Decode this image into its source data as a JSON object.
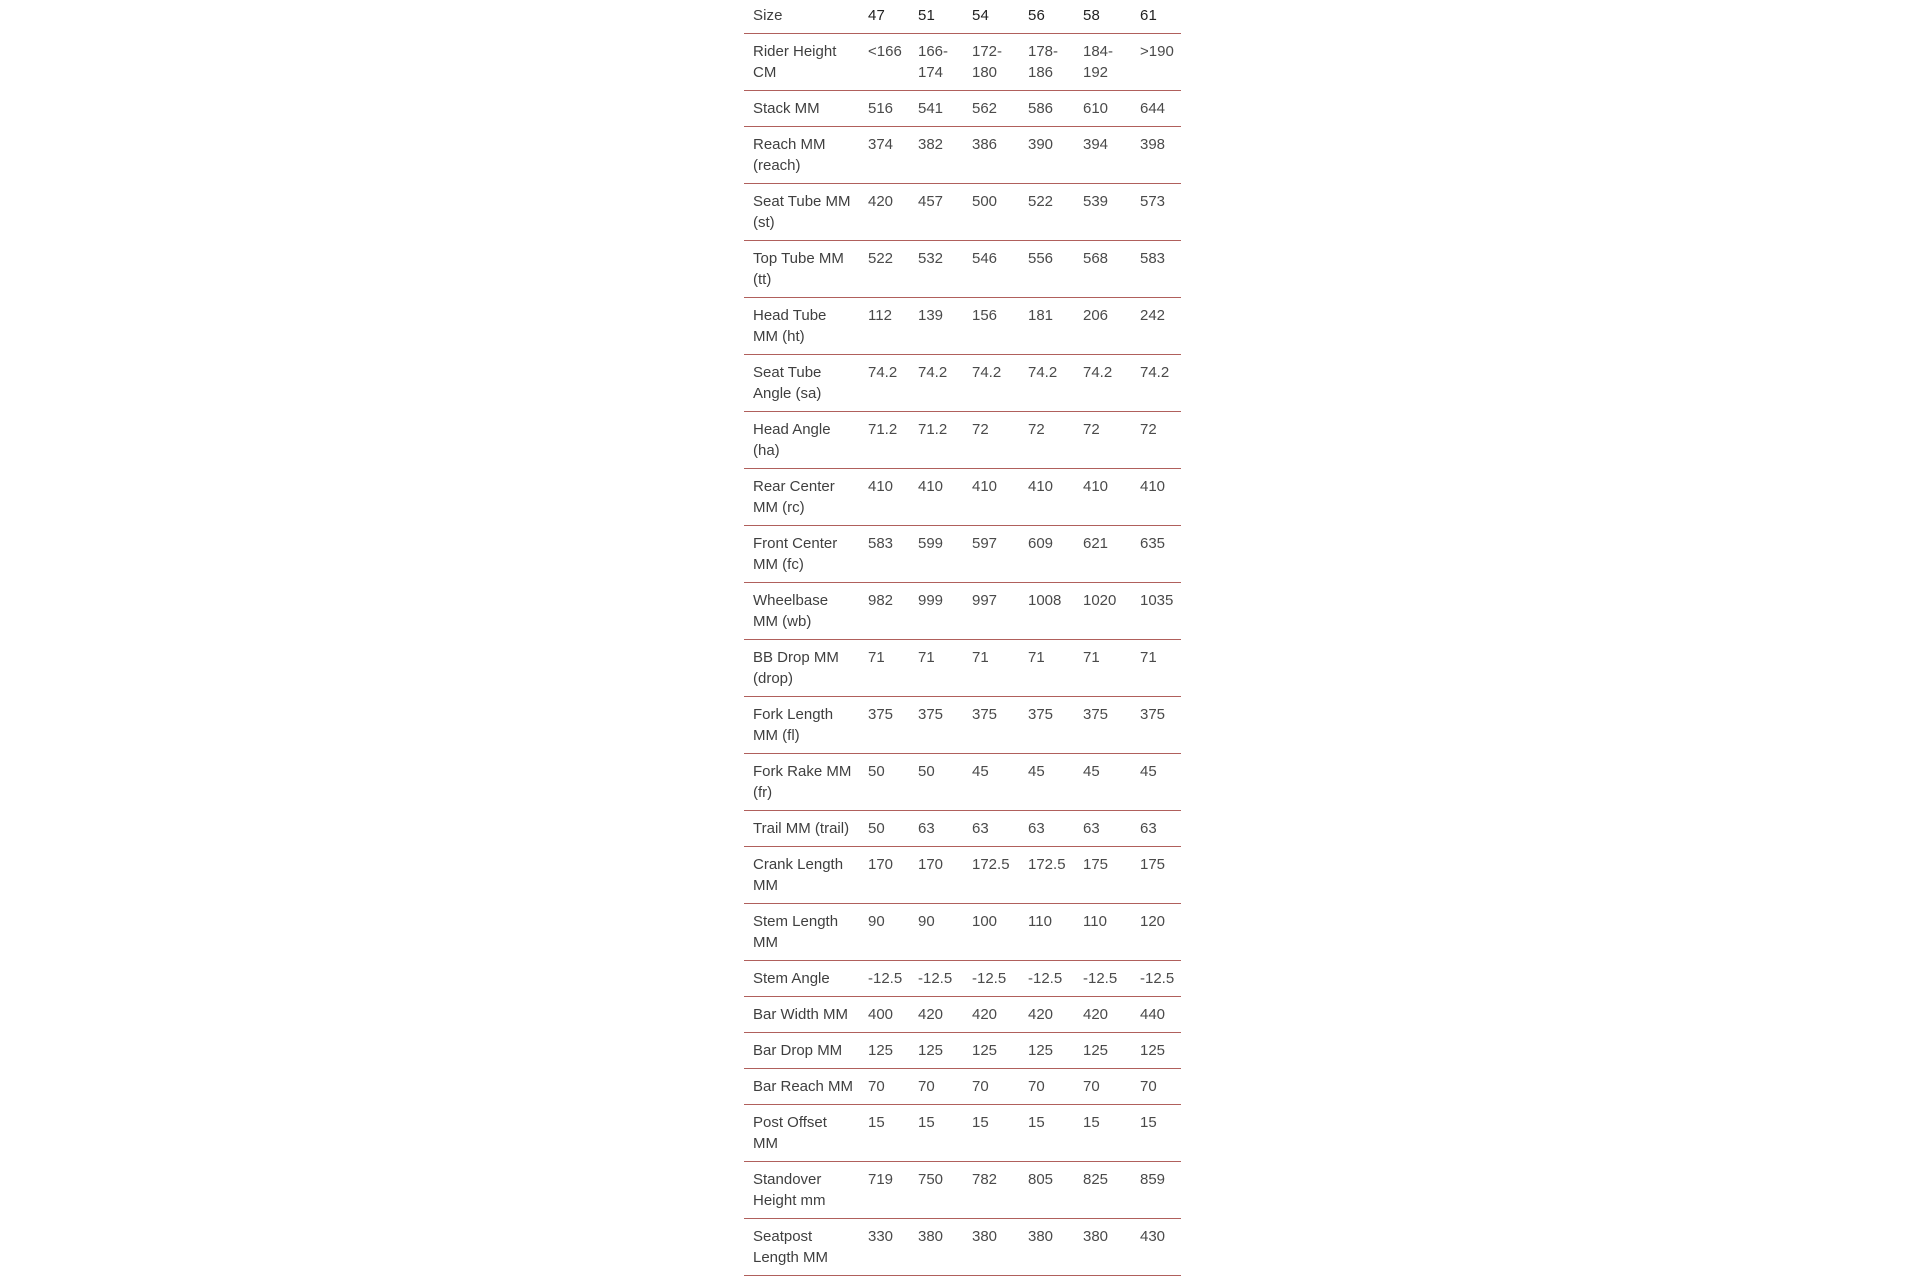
{
  "page": {
    "background": "#ffffff"
  },
  "theme": {
    "divider_color": "#b0605c",
    "header_text_color": "#212121",
    "label_text_color": "#3f3f3f",
    "value_text_color": "#4a4a4a"
  },
  "table": {
    "header": {
      "label": "Size",
      "sizes": [
        "47",
        "51",
        "54",
        "56",
        "58",
        "61"
      ]
    },
    "rows": [
      {
        "label": "Rider Height\nCM",
        "values": [
          "<166",
          "166-\n174",
          "172-\n180",
          "178-\n186",
          "184-\n192",
          ">190"
        ]
      },
      {
        "label": "Stack MM",
        "values": [
          "516",
          "541",
          "562",
          "586",
          "610",
          "644"
        ]
      },
      {
        "label": "Reach MM\n(reach)",
        "values": [
          "374",
          "382",
          "386",
          "390",
          "394",
          "398"
        ]
      },
      {
        "label": "Seat Tube MM\n(st)",
        "values": [
          "420",
          "457",
          "500",
          "522",
          "539",
          "573"
        ]
      },
      {
        "label": "Top Tube MM\n(tt)",
        "values": [
          "522",
          "532",
          "546",
          "556",
          "568",
          "583"
        ]
      },
      {
        "label": "Head Tube\nMM (ht)",
        "values": [
          "112",
          "139",
          "156",
          "181",
          "206",
          "242"
        ]
      },
      {
        "label": "Seat Tube\nAngle (sa)",
        "values": [
          "74.2",
          "74.2",
          "74.2",
          "74.2",
          "74.2",
          "74.2"
        ]
      },
      {
        "label": "Head Angle\n(ha)",
        "values": [
          "71.2",
          "71.2",
          "72",
          "72",
          "72",
          "72"
        ]
      },
      {
        "label": "Rear Center\nMM (rc)",
        "values": [
          "410",
          "410",
          "410",
          "410",
          "410",
          "410"
        ]
      },
      {
        "label": "Front Center\nMM (fc)",
        "values": [
          "583",
          "599",
          "597",
          "609",
          "621",
          "635"
        ]
      },
      {
        "label": "Wheelbase\nMM (wb)",
        "values": [
          "982",
          "999",
          "997",
          "1008",
          "1020",
          "1035"
        ]
      },
      {
        "label": "BB Drop MM\n(drop)",
        "values": [
          "71",
          "71",
          "71",
          "71",
          "71",
          "71"
        ]
      },
      {
        "label": "Fork Length\nMM (fl)",
        "values": [
          "375",
          "375",
          "375",
          "375",
          "375",
          "375"
        ]
      },
      {
        "label": "Fork Rake MM\n(fr)",
        "values": [
          "50",
          "50",
          "45",
          "45",
          "45",
          "45"
        ]
      },
      {
        "label": "Trail MM (trail)",
        "values": [
          "50",
          "63",
          "63",
          "63",
          "63",
          "63"
        ]
      },
      {
        "label": "Crank Length\nMM",
        "values": [
          "170",
          "170",
          "172.5",
          "172.5",
          "175",
          "175"
        ]
      },
      {
        "label": "Stem Length\nMM",
        "values": [
          "90",
          "90",
          "100",
          "110",
          "110",
          "120"
        ]
      },
      {
        "label": "Stem Angle",
        "values": [
          "-12.5",
          "-12.5",
          "-12.5",
          "-12.5",
          "-12.5",
          "-12.5"
        ]
      },
      {
        "label": "Bar Width MM",
        "values": [
          "400",
          "420",
          "420",
          "420",
          "420",
          "440"
        ]
      },
      {
        "label": "Bar Drop MM",
        "values": [
          "125",
          "125",
          "125",
          "125",
          "125",
          "125"
        ]
      },
      {
        "label": "Bar Reach MM",
        "values": [
          "70",
          "70",
          "70",
          "70",
          "70",
          "70"
        ]
      },
      {
        "label": "Post Offset\nMM",
        "values": [
          "15",
          "15",
          "15",
          "15",
          "15",
          "15"
        ]
      },
      {
        "label": "Standover\nHeight mm",
        "values": [
          "719",
          "750",
          "782",
          "805",
          "825",
          "859"
        ]
      },
      {
        "label": "Seatpost\nLength MM",
        "values": [
          "330",
          "380",
          "380",
          "380",
          "380",
          "430"
        ]
      }
    ]
  }
}
